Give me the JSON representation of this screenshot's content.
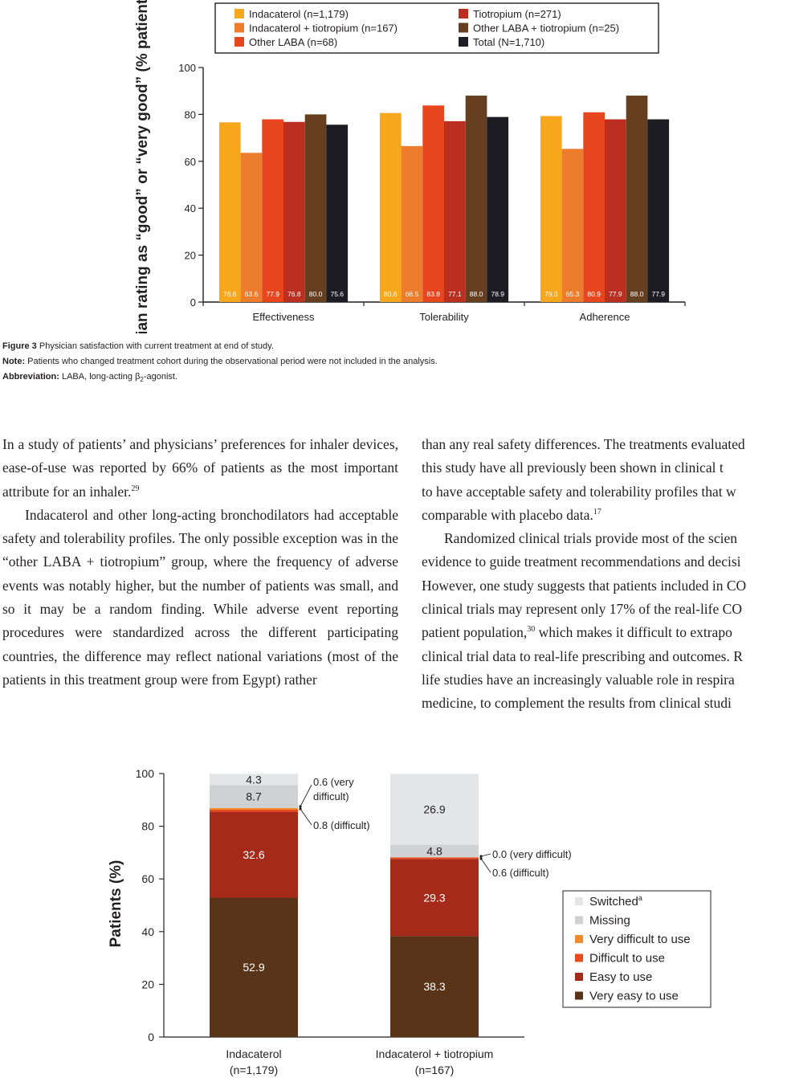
{
  "figure3": {
    "legend": [
      {
        "label": "Indacaterol (n=1,179)",
        "color": "#f6a71b"
      },
      {
        "label": "Indacaterol + tiotropium (n=167)",
        "color": "#ec7d2d"
      },
      {
        "label": "Other LABA (n=68)",
        "color": "#e8461e"
      },
      {
        "label": "Tiotropium (n=271)",
        "color": "#bb2f21"
      },
      {
        "label": "Other LABA + tiotropium (n=25)",
        "color": "#663f21"
      },
      {
        "label": "Total (N=1,710)",
        "color": "#1c1c22"
      }
    ],
    "caption": {
      "fig_label": "Figure 3",
      "fig_text": "Physician satisfaction with current treatment at end of study.",
      "note_label": "Note:",
      "note_text": "Patients who changed treatment cohort during the observational period were not included in the analysis.",
      "abbr_label": "Abbreviation:",
      "abbr_text_before": "LABA, long-acting β",
      "abbr_sub": "2",
      "abbr_text_after": "-agonist."
    }
  },
  "chart_data": [
    {
      "type": "bar",
      "ylabel": "Physician rating as “good” or “very good” (% patients)",
      "ylim": [
        0,
        100
      ],
      "yticks": [
        0,
        20,
        40,
        60,
        80,
        100
      ],
      "categories": [
        "Effectiveness",
        "Tolerability",
        "Adherence"
      ],
      "series": [
        {
          "name": "Indacaterol (n=1,179)",
          "color": "#f6a71b",
          "values": [
            76.6,
            80.6,
            79.3
          ],
          "labels": [
            "76.6",
            "80.6",
            "79.3"
          ]
        },
        {
          "name": "Indacaterol + tiotropium (n=167)",
          "color": "#ec7d2d",
          "values": [
            63.6,
            66.5,
            65.3
          ],
          "labels": [
            "63.6",
            "66.5",
            "65.3"
          ]
        },
        {
          "name": "Other LABA (n=68)",
          "color": "#e8461e",
          "values": [
            77.9,
            83.8,
            80.9
          ],
          "labels": [
            "77.9",
            "83.8",
            "80.9"
          ]
        },
        {
          "name": "Tiotropium (n=271)",
          "color": "#bb2f21",
          "values": [
            76.8,
            77.1,
            77.9
          ],
          "labels": [
            "76.8",
            "77.1",
            "77.9"
          ]
        },
        {
          "name": "Other LABA + tiotropium (n=25)",
          "color": "#663f21",
          "values": [
            80.0,
            88.0,
            88.0
          ],
          "labels": [
            "80.0",
            "88.0",
            "88.0"
          ]
        },
        {
          "name": "Total (N=1,710)",
          "color": "#1c1c22",
          "values": [
            75.6,
            78.9,
            77.9
          ],
          "labels": [
            "75.6",
            "78.9",
            "77.9"
          ]
        }
      ]
    },
    {
      "type": "bar",
      "stacked": true,
      "ylabel": "Patients (%)",
      "ylim": [
        0,
        100
      ],
      "yticks": [
        0,
        20,
        40,
        60,
        80,
        100
      ],
      "categories": [
        "Indacaterol|(n=1,179)",
        "Indacaterol + tiotropium|(n=167)"
      ],
      "series": [
        {
          "name": "Very easy to use",
          "color": "#5a3418",
          "values": [
            52.9,
            38.3
          ],
          "labels": [
            "52.9",
            "38.3"
          ]
        },
        {
          "name": "Easy to use",
          "color": "#a52a1a",
          "values": [
            32.6,
            29.3
          ],
          "labels": [
            "32.6",
            "29.3"
          ]
        },
        {
          "name": "Difficult to use",
          "color": "#e84a1f",
          "values": [
            0.8,
            0.6
          ],
          "labels": [
            "",
            ""
          ]
        },
        {
          "name": "Very difficult to use",
          "color": "#f08a2a",
          "values": [
            0.6,
            0.0
          ],
          "labels": [
            "",
            ""
          ]
        },
        {
          "name": "Missing",
          "color": "#cfd1d3",
          "values": [
            8.7,
            4.8
          ],
          "labels": [
            "8.7",
            "4.8"
          ]
        },
        {
          "name": "Switched",
          "color": "#e4e5e6",
          "values": [
            4.3,
            26.9
          ],
          "labels": [
            "4.3",
            "26.9"
          ]
        }
      ],
      "legend_sup": "a",
      "annotations": [
        {
          "text_lines": [
            "0.6 (very",
            "difficult)"
          ],
          "series": "Very difficult to use",
          "category": 0
        },
        {
          "text_lines": [
            "0.8 (difficult)"
          ],
          "series": "Difficult to use",
          "category": 0
        },
        {
          "text_lines": [
            "0.0 (very difficult)"
          ],
          "series": "Very difficult to use",
          "category": 1
        },
        {
          "text_lines": [
            "0.6 (difficult)"
          ],
          "series": "Difficult to use",
          "category": 1
        }
      ]
    }
  ],
  "body": {
    "left_paragraphs": [
      {
        "text": "In a study of patients’ and physicians’ preferences for inhaler devices, ease-of-use was reported by 66% of patients as the most important attribute for an inhaler.",
        "ref": "29"
      },
      {
        "text": "Indacaterol and other long-acting bronchodilators had acceptable safety and tolerability profiles. The only possible exception was in the “other LABA + tiotropium” group, where the frequency of adverse events was notably higher, but the number of patients was small, and so it may be a random finding. While adverse event reporting procedures were standardized across the different participating countries, the difference may reflect national variations (most of the patients in this treatment group were from Egypt) rather",
        "ref": ""
      }
    ],
    "right_lines": [
      "than any real safety differences. The treatments evaluated",
      "this study have all previously been shown in clinical t",
      "to have acceptable safety and tolerability profiles that w",
      "comparable with placebo data.",
      "Randomized clinical trials provide most of the scien",
      "evidence to guide treatment recommendations and decisi",
      "However, one study suggests that patients included in CO",
      "clinical trials may represent only 17% of the real-life CO",
      "patient population,",
      "clinical trial data to real-life prescribing and outcomes. R",
      "life studies have an increasingly valuable role in respira",
      "medicine, to complement the results from clinical studi"
    ],
    "right_ref_17": "17",
    "right_ref_30": "30",
    "right_line9_rest": " which makes it difficult to extrapo"
  }
}
